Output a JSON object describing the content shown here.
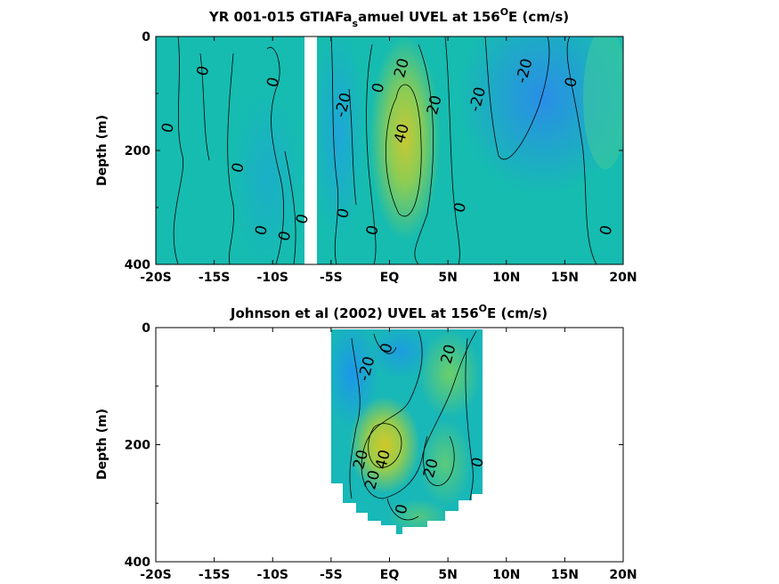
{
  "figure": {
    "colors": {
      "background": "#ffffff",
      "field_low": "#1e90ff",
      "field_mid": "#17b8b0",
      "field_high": "#c8c832"
    }
  },
  "chart_data": [
    {
      "type": "heatmap",
      "title_parts": {
        "a": "YR 001-015 GTIAFa",
        "sub": "s",
        "b": "amuel UVEL at 156",
        "sup": "O",
        "c": "E (cm/s)"
      },
      "ylabel": "Depth (m)",
      "xlabel": "",
      "x_ticks": [
        "-20S",
        "-15S",
        "-10S",
        "-5S",
        "EQ",
        "5N",
        "10N",
        "15N",
        "20N"
      ],
      "x_tick_values": [
        -20,
        -15,
        -10,
        -5,
        0,
        5,
        10,
        15,
        20
      ],
      "y_ticks": [
        "0",
        "200",
        "400"
      ],
      "y_tick_values": [
        0,
        200,
        400
      ],
      "xlim": [
        -20,
        20
      ],
      "ylim": [
        0,
        400
      ],
      "y_reversed": true,
      "data_extent_x": [
        -20,
        20
      ],
      "gap_x": [
        -7.5,
        -6.3
      ],
      "cells": [
        {
          "x": -18,
          "y": 150,
          "v": 0
        },
        {
          "x": -12,
          "y": 150,
          "v": 0
        },
        {
          "x": -4,
          "y": 120,
          "v": -20
        },
        {
          "x": 1.5,
          "y": 150,
          "v": 45
        },
        {
          "x": 1.5,
          "y": 250,
          "v": 30
        },
        {
          "x": 4,
          "y": 80,
          "v": 20
        },
        {
          "x": 10,
          "y": 100,
          "v": -30
        },
        {
          "x": 12,
          "y": 150,
          "v": -20
        },
        {
          "x": 18,
          "y": 150,
          "v": 0
        }
      ],
      "contour_labels": [
        {
          "x": -16,
          "y": 60,
          "text": "0"
        },
        {
          "x": -19,
          "y": 160,
          "text": "0"
        },
        {
          "x": -13,
          "y": 230,
          "text": "0"
        },
        {
          "x": -11,
          "y": 340,
          "text": "0"
        },
        {
          "x": -9,
          "y": 350,
          "text": "0"
        },
        {
          "x": -10,
          "y": 80,
          "text": "0"
        },
        {
          "x": -7.5,
          "y": 320,
          "text": "0"
        },
        {
          "x": -4,
          "y": 310,
          "text": "0"
        },
        {
          "x": -4,
          "y": 120,
          "text": "-20"
        },
        {
          "x": -1,
          "y": 90,
          "text": "0"
        },
        {
          "x": 1,
          "y": 55,
          "text": "20"
        },
        {
          "x": 1,
          "y": 170,
          "text": "40"
        },
        {
          "x": 3.8,
          "y": 120,
          "text": "20"
        },
        {
          "x": -1.5,
          "y": 340,
          "text": "0"
        },
        {
          "x": 6,
          "y": 300,
          "text": "0"
        },
        {
          "x": 7.5,
          "y": 110,
          "text": "-20"
        },
        {
          "x": 11.5,
          "y": 60,
          "text": "-20"
        },
        {
          "x": 15.5,
          "y": 80,
          "text": "0"
        },
        {
          "x": 18.5,
          "y": 340,
          "text": "0"
        }
      ]
    },
    {
      "type": "heatmap",
      "title_parts": {
        "a": "Johnson et al (2002) UVEL at 156",
        "sup": "O",
        "c": "E (cm/s)"
      },
      "ylabel": "Depth (m)",
      "xlabel": "",
      "x_ticks": [
        "-20S",
        "-15S",
        "-10S",
        "-5S",
        "EQ",
        "5N",
        "10N",
        "15N",
        "20N"
      ],
      "x_tick_values": [
        -20,
        -15,
        -10,
        -5,
        0,
        5,
        10,
        15,
        20
      ],
      "y_ticks": [
        "0",
        "200",
        "400"
      ],
      "y_tick_values": [
        0,
        200,
        400
      ],
      "xlim": [
        -20,
        20
      ],
      "ylim": [
        0,
        400
      ],
      "y_reversed": true,
      "data_extent_x": [
        -5,
        8
      ],
      "cells": [
        {
          "x": -3,
          "y": 60,
          "v": -20
        },
        {
          "x": 0,
          "y": 30,
          "v": 0
        },
        {
          "x": 0,
          "y": 200,
          "v": 45
        },
        {
          "x": 1.5,
          "y": 260,
          "v": 30
        },
        {
          "x": 5,
          "y": 60,
          "v": 20
        },
        {
          "x": 7,
          "y": 150,
          "v": 10
        },
        {
          "x": 3,
          "y": 320,
          "v": 5
        }
      ],
      "contour_labels": [
        {
          "x": -2,
          "y": 70,
          "text": "-20"
        },
        {
          "x": -0.3,
          "y": 35,
          "text": "0"
        },
        {
          "x": 5,
          "y": 45,
          "text": "20"
        },
        {
          "x": -2.5,
          "y": 225,
          "text": "20"
        },
        {
          "x": -0.6,
          "y": 225,
          "text": "40"
        },
        {
          "x": -1.5,
          "y": 260,
          "text": "20"
        },
        {
          "x": 3.5,
          "y": 240,
          "text": "20"
        },
        {
          "x": 7.5,
          "y": 230,
          "text": "0"
        },
        {
          "x": 1,
          "y": 310,
          "text": "0"
        }
      ]
    }
  ]
}
